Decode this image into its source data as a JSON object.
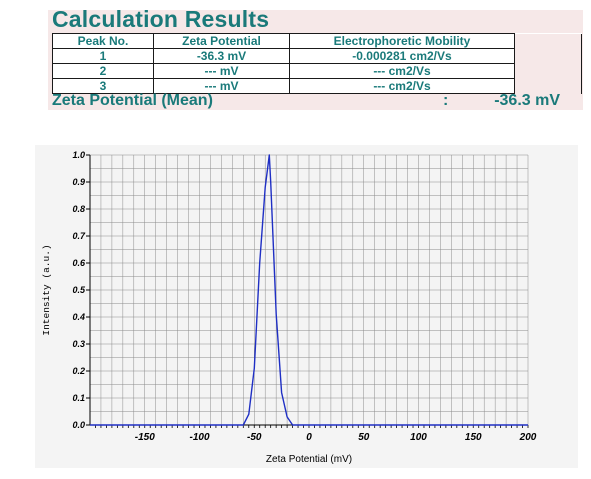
{
  "results": {
    "title": "Calculation Results",
    "headers": [
      "Peak No.",
      "Zeta Potential",
      "Electrophoretic Mobility"
    ],
    "rows": [
      [
        "1",
        "-36.3 mV",
        "-0.000281 cm2/Vs"
      ],
      [
        "2",
        "--- mV",
        "--- cm2/Vs"
      ],
      [
        "3",
        "--- mV",
        "--- cm2/Vs"
      ]
    ],
    "mean_label": "Zeta Potential (Mean)",
    "mean_sep": ":",
    "mean_value": "-36.3 mV"
  },
  "colors": {
    "accent": "#1a7a7a",
    "band": "#f6e8e8",
    "line": "#1f2fc4",
    "grid": "#8c8c8c"
  },
  "chart_data": {
    "type": "line",
    "xlabel": "Zeta Potential (mV)",
    "ylabel": "Intensity (a.u.)",
    "xlim": [
      -200,
      200
    ],
    "ylim": [
      0,
      1.0
    ],
    "x_ticks": [
      -150,
      -100,
      -50,
      0,
      50,
      100,
      150,
      200
    ],
    "y_ticks": [
      "0.0",
      "0.1",
      "0.2",
      "0.3",
      "0.4",
      "0.5",
      "0.6",
      "0.7",
      "0.8",
      "0.9",
      "1.0"
    ],
    "grid": true,
    "series": [
      {
        "x": [
          -200,
          -60,
          -55,
          -50,
          -45,
          -40,
          -36.3,
          -35,
          -30,
          -25,
          -20,
          -15,
          200
        ],
        "values": [
          0,
          0,
          0.04,
          0.21,
          0.6,
          0.88,
          1.0,
          0.9,
          0.41,
          0.12,
          0.03,
          0,
          0
        ]
      }
    ]
  }
}
